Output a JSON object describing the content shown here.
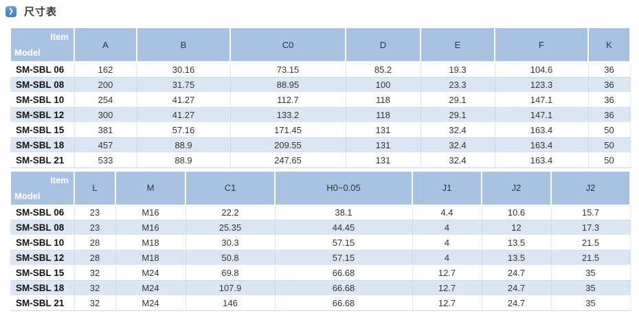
{
  "page_title": {
    "icon": "chevron-right-icon",
    "icon_glyph": "❯",
    "text": "尺寸表"
  },
  "colors": {
    "header_bg": "#a7c2e3",
    "alt_row_bg": "#dce6f2",
    "row_bg": "#ffffff",
    "corner_text": "#ffffff",
    "column_header_text": "#333333",
    "body_text": "#333333",
    "model_text": "#111111",
    "title_icon_bg": "#3c7ebd"
  },
  "tables": [
    {
      "name": "dimension-table-upper",
      "corner": {
        "top": "Item",
        "bottom": "Model"
      },
      "columns": [
        "A",
        "B",
        "C0",
        "D",
        "E",
        "F",
        "K"
      ],
      "rows": [
        {
          "model": "SM-SBL 06",
          "values": [
            "162",
            "30.16",
            "73.15",
            "85.2",
            "19.3",
            "104.6",
            "36"
          ]
        },
        {
          "model": "SM-SBL 08",
          "values": [
            "200",
            "31.75",
            "88.95",
            "100",
            "23.3",
            "123.3",
            "36"
          ]
        },
        {
          "model": "SM-SBL 10",
          "values": [
            "254",
            "41.27",
            "112.7",
            "118",
            "29.1",
            "147.1",
            "36"
          ]
        },
        {
          "model": "SM-SBL 12",
          "values": [
            "300",
            "41.27",
            "133.2",
            "118",
            "29.1",
            "147.1",
            "36"
          ]
        },
        {
          "model": "SM-SBL 15",
          "values": [
            "381",
            "57.16",
            "171.45",
            "131",
            "32.4",
            "163.4",
            "50"
          ]
        },
        {
          "model": "SM-SBL 18",
          "values": [
            "457",
            "88.9",
            "209.55",
            "131",
            "32.4",
            "163.4",
            "50"
          ]
        },
        {
          "model": "SM-SBL 21",
          "values": [
            "533",
            "88.9",
            "247.65",
            "131",
            "32.4",
            "163.4",
            "50"
          ]
        }
      ]
    },
    {
      "name": "dimension-table-lower",
      "corner": {
        "top": "Item",
        "bottom": "Model"
      },
      "columns": [
        "L",
        "M",
        "C1",
        "H0~0.05",
        "J1",
        "J2",
        "J2"
      ],
      "rows": [
        {
          "model": "SM-SBL 06",
          "values": [
            "23",
            "M16",
            "22.2",
            "38.1",
            "4.4",
            "10.6",
            "15.7"
          ]
        },
        {
          "model": "SM-SBL 08",
          "values": [
            "23",
            "M16",
            "25.35",
            "44.45",
            "4",
            "12",
            "17.3"
          ]
        },
        {
          "model": "SM-SBL 10",
          "values": [
            "28",
            "M18",
            "30.3",
            "57.15",
            "4",
            "13.5",
            "21.5"
          ]
        },
        {
          "model": "SM-SBL 12",
          "values": [
            "28",
            "M18",
            "50.8",
            "57.15",
            "4",
            "13.5",
            "21.5"
          ]
        },
        {
          "model": "SM-SBL 15",
          "values": [
            "32",
            "M24",
            "69.8",
            "66.68",
            "12.7",
            "24.7",
            "35"
          ]
        },
        {
          "model": "SM-SBL 18",
          "values": [
            "32",
            "M24",
            "107.9",
            "66.68",
            "12.7",
            "24.7",
            "35"
          ]
        },
        {
          "model": "SM-SBL 21",
          "values": [
            "32",
            "M24",
            "146",
            "66.68",
            "12.7",
            "24.7",
            "35"
          ]
        }
      ]
    }
  ]
}
